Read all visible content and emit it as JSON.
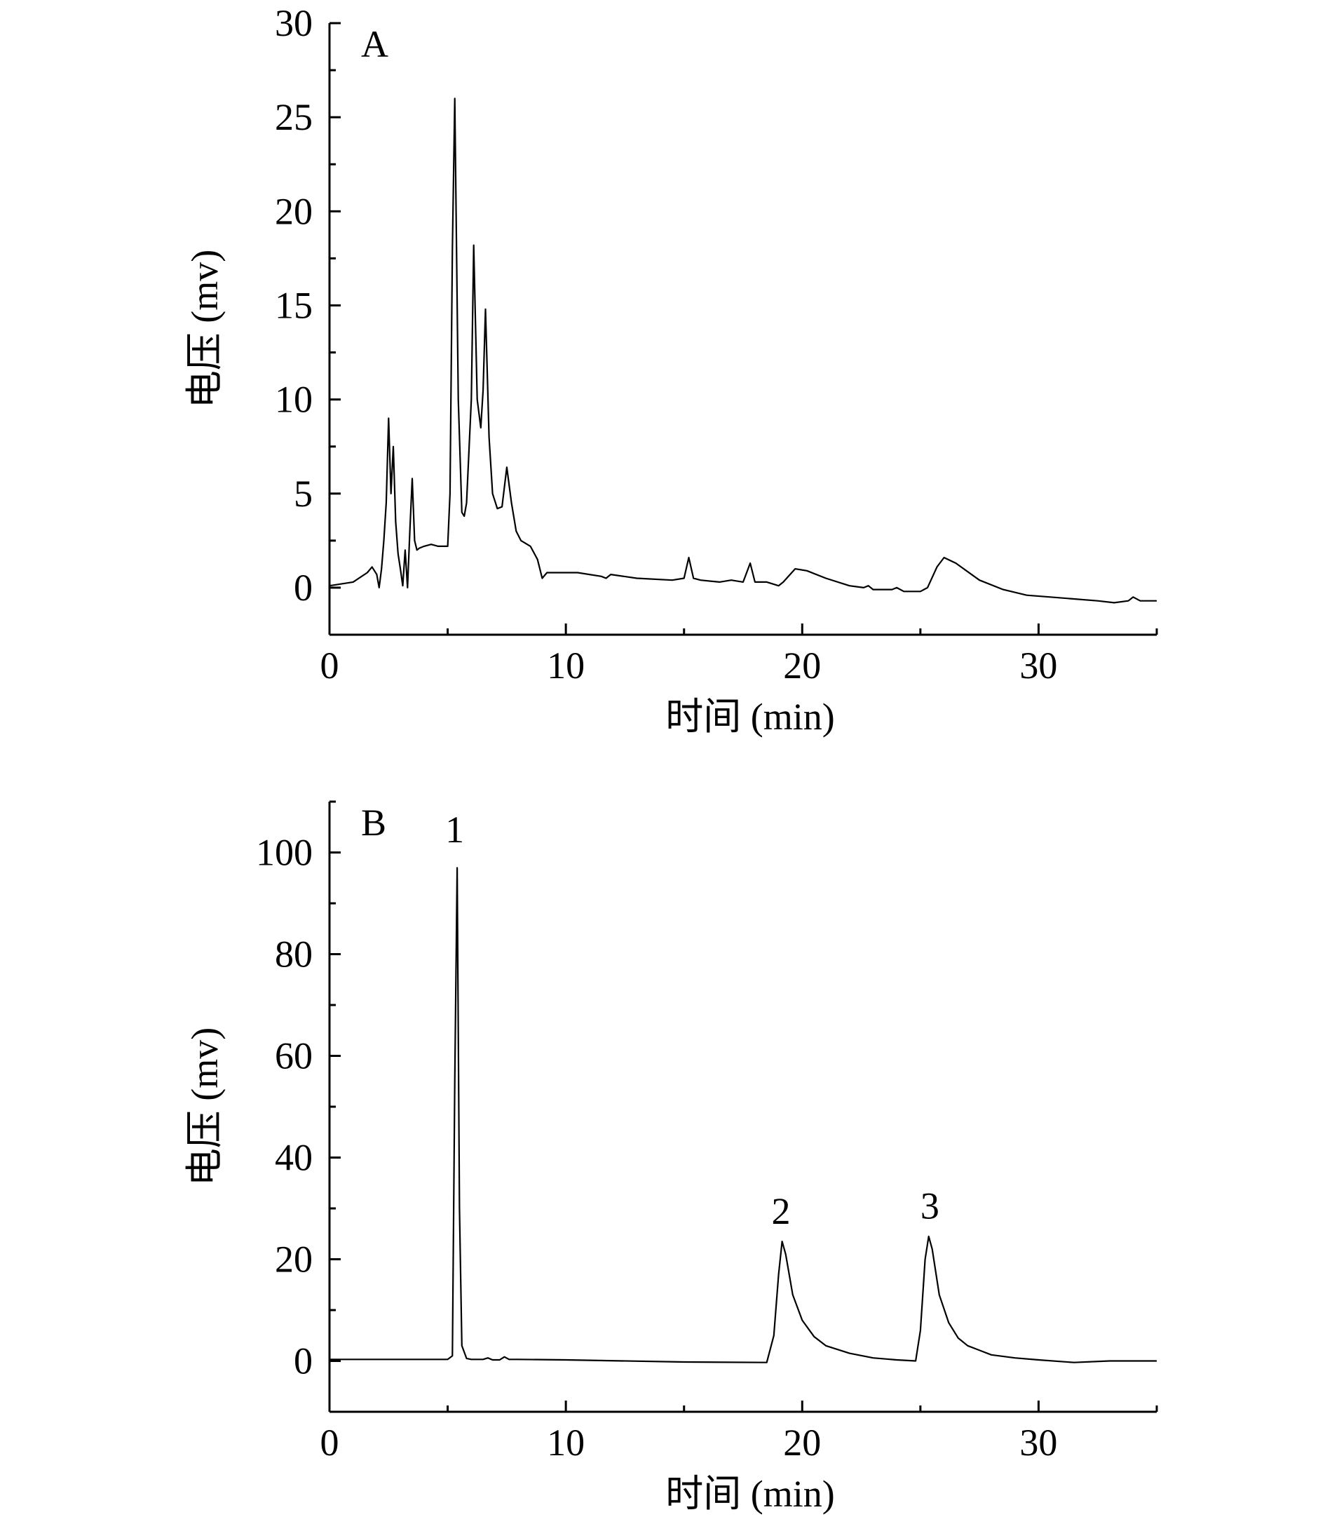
{
  "chart_data": [
    {
      "type": "line",
      "panel_label": "A",
      "xlabel": "时间 (min)",
      "ylabel": "电压 (mv)",
      "xlim": [
        0,
        35
      ],
      "ylim": [
        -2.5,
        30
      ],
      "x_ticks": [
        0,
        10,
        20,
        30
      ],
      "y_ticks": [
        0,
        5,
        10,
        15,
        20,
        25,
        30
      ],
      "x_tick_labels": [
        "0",
        "10",
        "20",
        "30"
      ],
      "y_tick_labels": [
        "0",
        "5",
        "10",
        "15",
        "20",
        "25",
        "30"
      ],
      "grid": false,
      "series": [
        {
          "x": [
            0,
            1.0,
            1.6,
            1.8,
            2.0,
            2.1,
            2.2,
            2.3,
            2.4,
            2.5,
            2.6,
            2.7,
            2.8,
            2.9,
            3.0,
            3.1,
            3.2,
            3.3,
            3.4,
            3.5,
            3.6,
            3.7,
            3.8,
            4.0,
            4.3,
            4.6,
            5.0,
            5.1,
            5.2,
            5.3,
            5.45,
            5.6,
            5.7,
            5.8,
            6.0,
            6.1,
            6.25,
            6.4,
            6.5,
            6.6,
            6.75,
            6.9,
            7.1,
            7.3,
            7.5,
            7.7,
            7.9,
            8.1,
            8.5,
            8.8,
            9.0,
            9.2,
            10.0,
            10.5,
            11.5,
            11.7,
            11.9,
            13.0,
            14.5,
            15.0,
            15.2,
            15.4,
            15.7,
            16.5,
            17.0,
            17.5,
            17.8,
            18.0,
            18.5,
            19.0,
            19.2,
            19.7,
            20.2,
            21.0,
            22.0,
            22.6,
            22.8,
            23.0,
            23.8,
            24.0,
            24.3,
            25.0,
            25.3,
            25.7,
            26.0,
            26.5,
            27.5,
            28.5,
            29.5,
            30.5,
            31.5,
            32.5,
            33.2,
            33.8,
            34.0,
            34.3,
            35.0
          ],
          "values": [
            0.1,
            0.3,
            0.8,
            1.1,
            0.7,
            0.0,
            1.0,
            2.5,
            4.5,
            9.0,
            5.0,
            7.5,
            3.5,
            1.8,
            1.0,
            0.1,
            2.0,
            0.0,
            3.0,
            5.8,
            2.5,
            2.0,
            2.1,
            2.2,
            2.3,
            2.2,
            2.2,
            5.0,
            18.0,
            26.0,
            10.0,
            4.0,
            3.8,
            4.5,
            10.0,
            18.2,
            10.0,
            8.5,
            10.5,
            14.8,
            8.0,
            5.0,
            4.2,
            4.3,
            6.4,
            4.5,
            3.0,
            2.5,
            2.2,
            1.5,
            0.5,
            0.8,
            0.8,
            0.8,
            0.6,
            0.5,
            0.7,
            0.5,
            0.4,
            0.5,
            1.6,
            0.5,
            0.4,
            0.3,
            0.4,
            0.3,
            1.3,
            0.3,
            0.3,
            0.1,
            0.3,
            1.0,
            0.9,
            0.5,
            0.1,
            0.0,
            0.1,
            -0.1,
            -0.1,
            0.0,
            -0.2,
            -0.2,
            0.0,
            1.1,
            1.6,
            1.3,
            0.4,
            -0.1,
            -0.4,
            -0.5,
            -0.6,
            -0.7,
            -0.8,
            -0.7,
            -0.5,
            -0.7,
            -0.7
          ]
        }
      ]
    },
    {
      "type": "line",
      "panel_label": "B",
      "xlabel": "时间 (min)",
      "ylabel": "电压 (mv)",
      "xlim": [
        0,
        35
      ],
      "ylim": [
        -10,
        110
      ],
      "x_ticks": [
        0,
        10,
        20,
        30
      ],
      "y_ticks": [
        0,
        20,
        40,
        60,
        80,
        100
      ],
      "x_tick_labels": [
        "0",
        "10",
        "20",
        "30"
      ],
      "y_tick_labels": [
        "0",
        "20",
        "40",
        "60",
        "80",
        "100"
      ],
      "grid": false,
      "annotations": [
        {
          "text": "1",
          "x": 5.3,
          "y": 102
        },
        {
          "text": "2",
          "x": 19.1,
          "y": 27
        },
        {
          "text": "3",
          "x": 25.4,
          "y": 28
        }
      ],
      "series": [
        {
          "x": [
            0,
            5.0,
            5.2,
            5.3,
            5.4,
            5.5,
            5.6,
            5.8,
            6.0,
            6.5,
            6.7,
            6.9,
            7.2,
            7.4,
            7.6,
            8.0,
            10.0,
            15.0,
            18.5,
            18.8,
            19.0,
            19.15,
            19.3,
            19.6,
            20.0,
            20.5,
            21.0,
            22.0,
            23.0,
            24.0,
            24.8,
            25.0,
            25.2,
            25.35,
            25.5,
            25.8,
            26.2,
            26.6,
            27.0,
            28.0,
            29.0,
            30.0,
            31.5,
            33.0,
            35.0
          ],
          "values": [
            0.3,
            0.3,
            1.0,
            55.0,
            97.0,
            30.0,
            3.0,
            0.5,
            0.3,
            0.3,
            0.6,
            0.2,
            0.2,
            0.8,
            0.3,
            0.3,
            0.2,
            -0.2,
            -0.3,
            5.0,
            17.0,
            23.5,
            21.0,
            13.0,
            8.0,
            4.8,
            3.0,
            1.5,
            0.6,
            0.2,
            0.0,
            6.0,
            20.0,
            24.5,
            22.0,
            13.0,
            7.5,
            4.5,
            3.0,
            1.2,
            0.6,
            0.2,
            -0.3,
            0.0,
            0.0
          ]
        }
      ]
    }
  ]
}
